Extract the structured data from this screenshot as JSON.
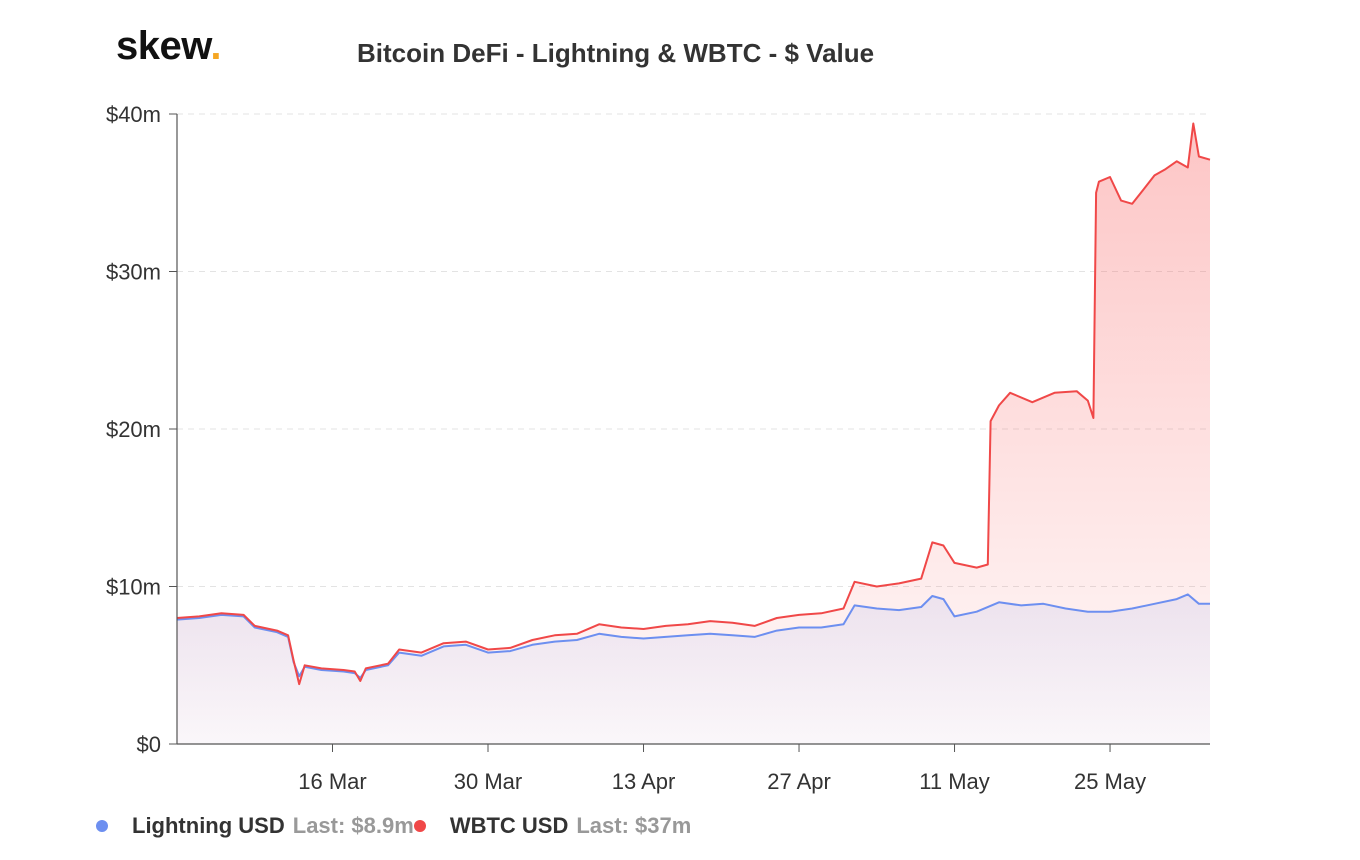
{
  "brand": {
    "name": "skew",
    "dot": "."
  },
  "title": "Bitcoin DeFi - Lightning & WBTC - $ Value",
  "legend": [
    {
      "name": "Lightning USD",
      "last": "Last: $8.9m",
      "color": "#6d8ff0"
    },
    {
      "name": "WBTC USD",
      "last": "Last: $37m",
      "color": "#f04848"
    }
  ],
  "chart_data": {
    "type": "area",
    "title": "Bitcoin DeFi - Lightning & WBTC - $ Value",
    "xlabel": "",
    "ylabel": "",
    "x_ticks": [
      "16 Mar",
      "30 Mar",
      "13 Apr",
      "27 Apr",
      "11 May",
      "25 May"
    ],
    "y_ticks": [
      "$0",
      "$10m",
      "$20m",
      "$30m",
      "$40m"
    ],
    "ylim": [
      0,
      40
    ],
    "y_unit": "$m",
    "x_range": [
      "2020-03-02",
      "2020-06-03"
    ],
    "grid": "horizontal dashed",
    "legend_position": "bottom-left",
    "series": [
      {
        "name": "Lightning USD",
        "color": "#6d8ff0",
        "points": [
          [
            "2020-03-02",
            7.9
          ],
          [
            "2020-03-04",
            8.0
          ],
          [
            "2020-03-06",
            8.2
          ],
          [
            "2020-03-08",
            8.1
          ],
          [
            "2020-03-09",
            7.4
          ],
          [
            "2020-03-11",
            7.1
          ],
          [
            "2020-03-12",
            6.8
          ],
          [
            "2020-03-12T12:00",
            5.2
          ],
          [
            "2020-03-13",
            4.3
          ],
          [
            "2020-03-13T12:00",
            4.9
          ],
          [
            "2020-03-15",
            4.7
          ],
          [
            "2020-03-17",
            4.6
          ],
          [
            "2020-03-18",
            4.5
          ],
          [
            "2020-03-18T12:00",
            4.2
          ],
          [
            "2020-03-19",
            4.7
          ],
          [
            "2020-03-21",
            5.0
          ],
          [
            "2020-03-22",
            5.8
          ],
          [
            "2020-03-24",
            5.6
          ],
          [
            "2020-03-26",
            6.2
          ],
          [
            "2020-03-28",
            6.3
          ],
          [
            "2020-03-30",
            5.8
          ],
          [
            "2020-04-01",
            5.9
          ],
          [
            "2020-04-03",
            6.3
          ],
          [
            "2020-04-05",
            6.5
          ],
          [
            "2020-04-07",
            6.6
          ],
          [
            "2020-04-09",
            7.0
          ],
          [
            "2020-04-11",
            6.8
          ],
          [
            "2020-04-13",
            6.7
          ],
          [
            "2020-04-15",
            6.8
          ],
          [
            "2020-04-17",
            6.9
          ],
          [
            "2020-04-19",
            7.0
          ],
          [
            "2020-04-21",
            6.9
          ],
          [
            "2020-04-23",
            6.8
          ],
          [
            "2020-04-25",
            7.2
          ],
          [
            "2020-04-27",
            7.4
          ],
          [
            "2020-04-29",
            7.4
          ],
          [
            "2020-05-01",
            7.6
          ],
          [
            "2020-05-02",
            8.8
          ],
          [
            "2020-05-04",
            8.6
          ],
          [
            "2020-05-06",
            8.5
          ],
          [
            "2020-05-08",
            8.7
          ],
          [
            "2020-05-09",
            9.4
          ],
          [
            "2020-05-10",
            9.2
          ],
          [
            "2020-05-11",
            8.1
          ],
          [
            "2020-05-13",
            8.4
          ],
          [
            "2020-05-15",
            9.0
          ],
          [
            "2020-05-17",
            8.8
          ],
          [
            "2020-05-19",
            8.9
          ],
          [
            "2020-05-21",
            8.6
          ],
          [
            "2020-05-23",
            8.4
          ],
          [
            "2020-05-25",
            8.4
          ],
          [
            "2020-05-27",
            8.6
          ],
          [
            "2020-05-29",
            8.9
          ],
          [
            "2020-05-31",
            9.2
          ],
          [
            "2020-06-01",
            9.5
          ],
          [
            "2020-06-02",
            8.9
          ],
          [
            "2020-06-03",
            8.9
          ]
        ]
      },
      {
        "name": "WBTC USD",
        "color": "#f04848",
        "points": [
          [
            "2020-03-02",
            8.0
          ],
          [
            "2020-03-04",
            8.1
          ],
          [
            "2020-03-06",
            8.3
          ],
          [
            "2020-03-08",
            8.2
          ],
          [
            "2020-03-09",
            7.5
          ],
          [
            "2020-03-11",
            7.2
          ],
          [
            "2020-03-12",
            6.9
          ],
          [
            "2020-03-12T12:00",
            5.3
          ],
          [
            "2020-03-13",
            3.8
          ],
          [
            "2020-03-13T12:00",
            5.0
          ],
          [
            "2020-03-15",
            4.8
          ],
          [
            "2020-03-17",
            4.7
          ],
          [
            "2020-03-18",
            4.6
          ],
          [
            "2020-03-18T12:00",
            4.0
          ],
          [
            "2020-03-19",
            4.8
          ],
          [
            "2020-03-21",
            5.1
          ],
          [
            "2020-03-22",
            6.0
          ],
          [
            "2020-03-24",
            5.8
          ],
          [
            "2020-03-26",
            6.4
          ],
          [
            "2020-03-28",
            6.5
          ],
          [
            "2020-03-30",
            6.0
          ],
          [
            "2020-04-01",
            6.1
          ],
          [
            "2020-04-03",
            6.6
          ],
          [
            "2020-04-05",
            6.9
          ],
          [
            "2020-04-07",
            7.0
          ],
          [
            "2020-04-09",
            7.6
          ],
          [
            "2020-04-11",
            7.4
          ],
          [
            "2020-04-13",
            7.3
          ],
          [
            "2020-04-15",
            7.5
          ],
          [
            "2020-04-17",
            7.6
          ],
          [
            "2020-04-19",
            7.8
          ],
          [
            "2020-04-21",
            7.7
          ],
          [
            "2020-04-23",
            7.5
          ],
          [
            "2020-04-25",
            8.0
          ],
          [
            "2020-04-27",
            8.2
          ],
          [
            "2020-04-29",
            8.3
          ],
          [
            "2020-05-01",
            8.6
          ],
          [
            "2020-05-02",
            10.3
          ],
          [
            "2020-05-04",
            10.0
          ],
          [
            "2020-05-06",
            10.2
          ],
          [
            "2020-05-08",
            10.5
          ],
          [
            "2020-05-09",
            12.8
          ],
          [
            "2020-05-10",
            12.6
          ],
          [
            "2020-05-11",
            11.5
          ],
          [
            "2020-05-13",
            11.2
          ],
          [
            "2020-05-14",
            11.4
          ],
          [
            "2020-05-14T06:00",
            20.5
          ],
          [
            "2020-05-15",
            21.5
          ],
          [
            "2020-05-16",
            22.3
          ],
          [
            "2020-05-18",
            21.7
          ],
          [
            "2020-05-20",
            22.3
          ],
          [
            "2020-05-22",
            22.4
          ],
          [
            "2020-05-23",
            21.8
          ],
          [
            "2020-05-23T12:00",
            20.7
          ],
          [
            "2020-05-23T18:00",
            35.0
          ],
          [
            "2020-05-24",
            35.7
          ],
          [
            "2020-05-25",
            36.0
          ],
          [
            "2020-05-26",
            34.5
          ],
          [
            "2020-05-27",
            34.3
          ],
          [
            "2020-05-28",
            35.2
          ],
          [
            "2020-05-29",
            36.1
          ],
          [
            "2020-05-30",
            36.5
          ],
          [
            "2020-05-31",
            37.0
          ],
          [
            "2020-06-01",
            36.6
          ],
          [
            "2020-06-01T12:00",
            39.4
          ],
          [
            "2020-06-02",
            37.3
          ],
          [
            "2020-06-03",
            37.1
          ]
        ]
      }
    ]
  }
}
